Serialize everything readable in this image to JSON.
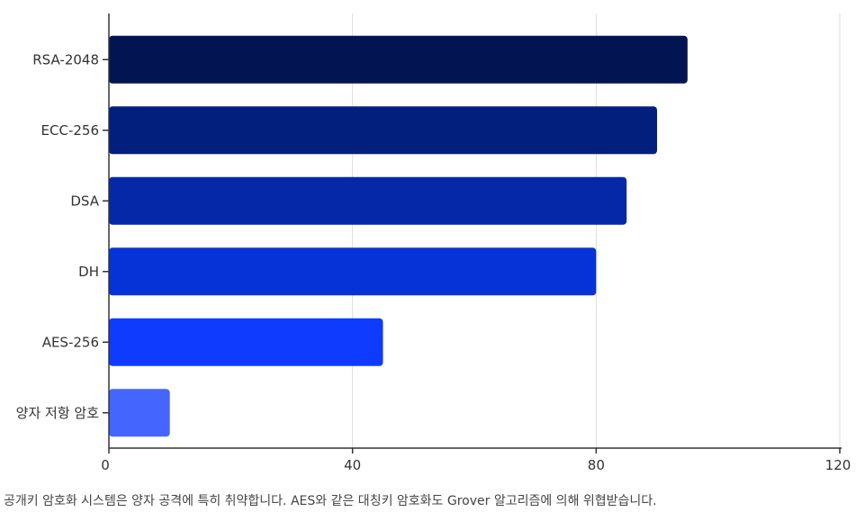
{
  "chart_data": {
    "type": "bar",
    "orientation": "horizontal",
    "categories": [
      "RSA-2048",
      "ECC-256",
      "DSA",
      "DH",
      "AES-256",
      "양자 저항 암호"
    ],
    "values": [
      95,
      90,
      85,
      80,
      45,
      10
    ],
    "colors": [
      "#021452",
      "#021f7e",
      "#0428a8",
      "#0633d8",
      "#0e3bff",
      "#4466ff"
    ],
    "xlim": [
      0,
      120
    ],
    "xticks": [
      0,
      40,
      80,
      120
    ],
    "grid": true,
    "legend": "none",
    "title": "",
    "xlabel": "",
    "ylabel": ""
  },
  "caption": "공개키 암호화 시스템은 양자 공격에 특히 취약합니다. AES와 같은 대칭키 암호화도 Grover 알고리즘에 의해 위협받습니다."
}
